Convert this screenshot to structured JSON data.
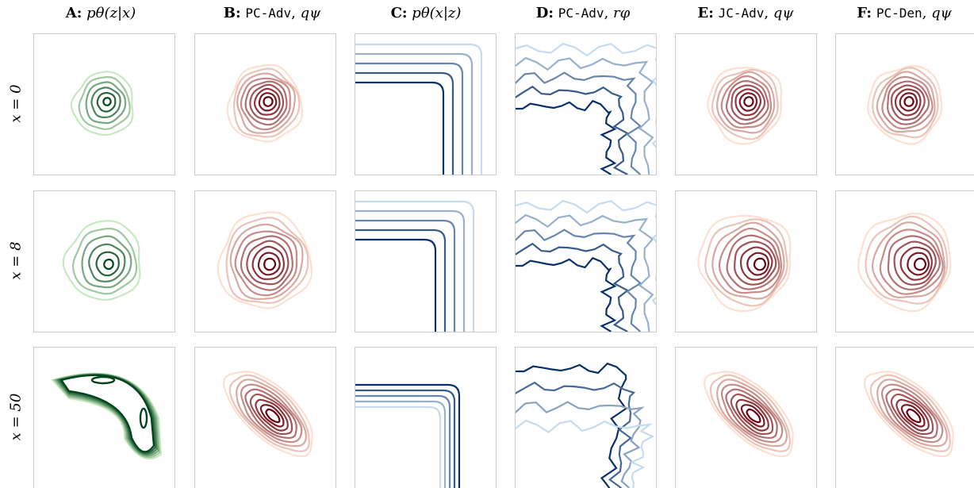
{
  "columns": [
    {
      "letter": "A:",
      "method": "",
      "sep": "",
      "symbol": "pθ(z|x)"
    },
    {
      "letter": "B:",
      "method": "PC-Adv",
      "sep": ", ",
      "symbol": "qψ"
    },
    {
      "letter": "C:",
      "method": "",
      "sep": "",
      "symbol": "pθ(x|z)"
    },
    {
      "letter": "D:",
      "method": "PC-Adv",
      "sep": ", ",
      "symbol": "rφ"
    },
    {
      "letter": "E:",
      "method": "JC-Adv",
      "sep": ", ",
      "symbol": "qψ"
    },
    {
      "letter": "F:",
      "method": "PC-Den",
      "sep": ", ",
      "symbol": "qψ"
    }
  ],
  "rows": [
    {
      "label": "x = 0"
    },
    {
      "label": "x = 8"
    },
    {
      "label": "x = 50"
    }
  ],
  "colors": {
    "green_dark": "#00441b",
    "green_light": "#c7e9c0",
    "red_dark": "#67000d",
    "red_light": "#fee0d2",
    "blue_dark": "#08306b",
    "blue_light": "#c6dbef",
    "panel_border": "#cccccc"
  }
}
